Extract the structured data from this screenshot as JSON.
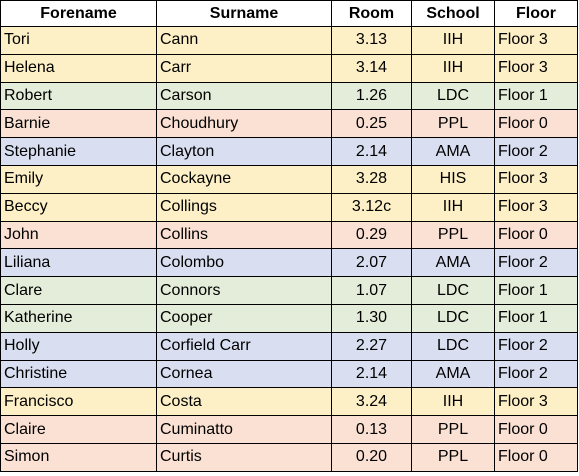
{
  "table": {
    "headers": [
      "Forename",
      "Surname",
      "Room",
      "School",
      "Floor"
    ],
    "colors": {
      "yellow": "#fdf0c6",
      "green": "#e4edd9",
      "pink": "#fbe1d4",
      "blue": "#d9dff0"
    },
    "rows": [
      {
        "forename": "Tori",
        "surname": "Cann",
        "room": "3.13",
        "school": "IIH",
        "floor": "Floor 3",
        "color": "yellow"
      },
      {
        "forename": "Helena",
        "surname": "Carr",
        "room": "3.14",
        "school": "IIH",
        "floor": "Floor 3",
        "color": "yellow"
      },
      {
        "forename": "Robert",
        "surname": "Carson",
        "room": "1.26",
        "school": "LDC",
        "floor": "Floor 1",
        "color": "green"
      },
      {
        "forename": "Barnie",
        "surname": "Choudhury",
        "room": "0.25",
        "school": "PPL",
        "floor": "Floor 0",
        "color": "pink"
      },
      {
        "forename": "Stephanie",
        "surname": "Clayton",
        "room": "2.14",
        "school": "AMA",
        "floor": "Floor 2",
        "color": "blue"
      },
      {
        "forename": "Emily",
        "surname": "Cockayne",
        "room": "3.28",
        "school": "HIS",
        "floor": "Floor 3",
        "color": "yellow"
      },
      {
        "forename": "Beccy",
        "surname": "Collings",
        "room": "3.12c",
        "school": "IIH",
        "floor": "Floor 3",
        "color": "yellow"
      },
      {
        "forename": "John",
        "surname": "Collins",
        "room": "0.29",
        "school": "PPL",
        "floor": "Floor 0",
        "color": "pink"
      },
      {
        "forename": "Liliana",
        "surname": "Colombo",
        "room": "2.07",
        "school": "AMA",
        "floor": "Floor 2",
        "color": "blue"
      },
      {
        "forename": "Clare",
        "surname": "Connors",
        "room": "1.07",
        "school": "LDC",
        "floor": "Floor 1",
        "color": "green"
      },
      {
        "forename": "Katherine",
        "surname": "Cooper",
        "room": "1.30",
        "school": "LDC",
        "floor": "Floor 1",
        "color": "green"
      },
      {
        "forename": "Holly",
        "surname": "Corfield Carr",
        "room": "2.27",
        "school": "LDC",
        "floor": "Floor 2",
        "color": "blue"
      },
      {
        "forename": "Christine",
        "surname": "Cornea",
        "room": "2.14",
        "school": "AMA",
        "floor": "Floor 2",
        "color": "blue"
      },
      {
        "forename": "Francisco",
        "surname": "Costa",
        "room": "3.24",
        "school": "IIH",
        "floor": "Floor 3",
        "color": "yellow"
      },
      {
        "forename": "Claire",
        "surname": "Cuminatto",
        "room": "0.13",
        "school": "PPL",
        "floor": "Floor 0",
        "color": "pink"
      },
      {
        "forename": "Simon",
        "surname": "Curtis",
        "room": "0.20",
        "school": "PPL",
        "floor": "Floor 0",
        "color": "pink"
      }
    ]
  }
}
